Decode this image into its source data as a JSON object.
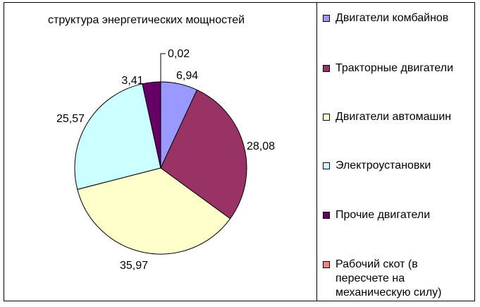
{
  "chart_data": {
    "type": "pie",
    "title": "структура энергетических мощностей",
    "legend_position": "right",
    "slices": [
      {
        "name": "Двигатели комбайнов",
        "value": 6.94,
        "label": "6,94",
        "color": "#9999ff"
      },
      {
        "name": "Тракторные двигатели",
        "value": 28.08,
        "label": "28,08",
        "color": "#993366"
      },
      {
        "name": "Двигатели автомашин",
        "value": 35.97,
        "label": "35,97",
        "color": "#ffffcc"
      },
      {
        "name": "Электроустановки",
        "value": 25.57,
        "label": "25,57",
        "color": "#ccffff"
      },
      {
        "name": "Прочие двигатели",
        "value": 3.41,
        "label": "3,41",
        "color": "#660066"
      },
      {
        "name": "Рабочий скот       (в пересчете на механическую силу)",
        "value": 0.02,
        "label": "0,02",
        "color": "#ff8080"
      }
    ]
  }
}
